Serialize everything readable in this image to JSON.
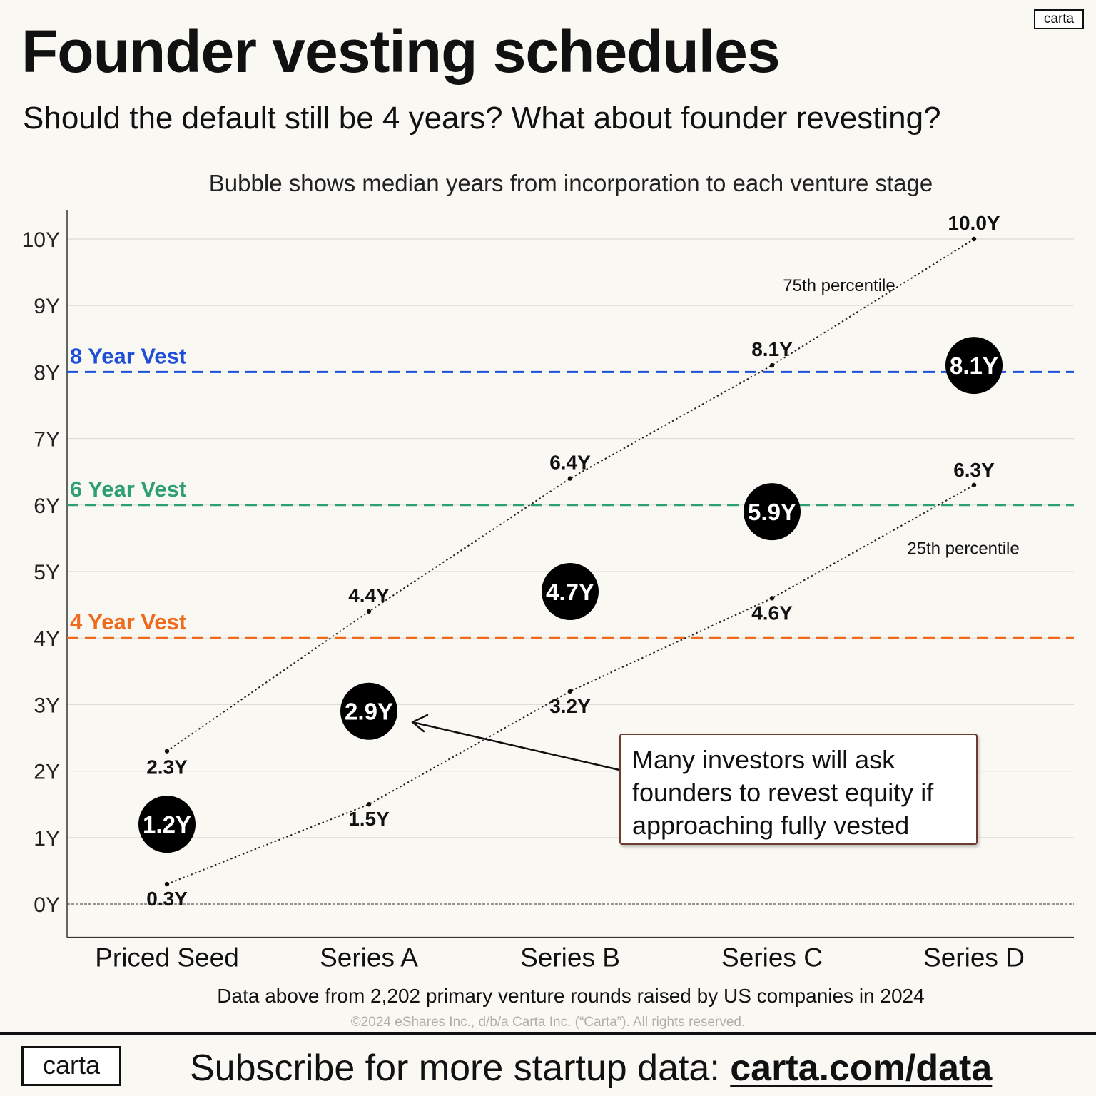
{
  "header": {
    "title": "Founder vesting schedules",
    "subtitle": "Should the default still be 4 years? What about founder revesting?",
    "logo_text": "carta"
  },
  "annotation_text": "Many investors will ask founders to revest equity if approaching fully vested",
  "footer": {
    "logo_text": "carta",
    "cta_text": "Subscribe for more startup data: ",
    "cta_link": "carta.com/data"
  },
  "colors": {
    "background": "#faf8f3",
    "bubble": "#000000",
    "vest_8": "#1f4fd6",
    "vest_6": "#2e9e74",
    "vest_4": "#ee6a1c"
  },
  "chart_data": {
    "type": "scatter",
    "title": "Bubble shows median years from incorporation to each venture stage",
    "categories": [
      "Priced Seed",
      "Series A",
      "Series B",
      "Series C",
      "Series D"
    ],
    "y_tick_labels": [
      "0Y",
      "1Y",
      "2Y",
      "3Y",
      "4Y",
      "5Y",
      "6Y",
      "7Y",
      "8Y",
      "9Y",
      "10Y"
    ],
    "ylim": [
      -0.5,
      11
    ],
    "grid": true,
    "series": [
      {
        "name": "75th percentile",
        "style": "dotted-line",
        "values": [
          2.3,
          4.4,
          6.4,
          8.1,
          10.0
        ],
        "labels": [
          "2.3Y",
          "4.4Y",
          "6.4Y",
          "8.1Y",
          "10.0Y"
        ]
      },
      {
        "style": "bubble",
        "values": [
          1.2,
          2.9,
          4.7,
          5.9,
          8.1
        ],
        "labels": [
          "1.2Y",
          "2.9Y",
          "4.7Y",
          "5.9Y",
          "8.1Y"
        ]
      },
      {
        "name": "25th percentile",
        "style": "dotted-line",
        "values": [
          0.3,
          1.5,
          3.2,
          4.6,
          6.3
        ],
        "labels": [
          "0.3Y",
          "1.5Y",
          "3.2Y",
          "4.6Y",
          "6.3Y"
        ]
      }
    ],
    "reference_lines": [
      {
        "label": "8 Year Vest",
        "value": 8,
        "color": "#1f4fd6"
      },
      {
        "label": "6 Year Vest",
        "value": 6,
        "color": "#2e9e74"
      },
      {
        "label": "4 Year Vest",
        "value": 4,
        "color": "#ee6a1c"
      }
    ],
    "source_note": "Data above from 2,202 primary venture rounds raised by US companies in 2024",
    "copyright": "©2024 eShares Inc., d/b/a Carta Inc. (“Carta”). All rights reserved."
  }
}
